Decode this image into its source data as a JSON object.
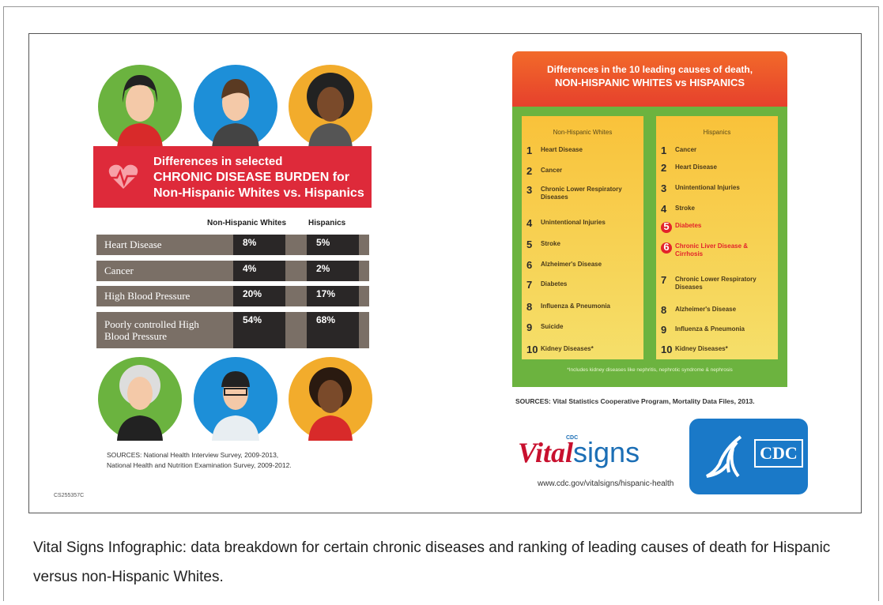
{
  "left": {
    "title": [
      "Differences in selected",
      "CHRONIC DISEASE BURDEN for",
      "Non-Hispanic Whites vs. Hispanics"
    ],
    "columns": [
      "Non-Hispanic Whites",
      "Hispanics"
    ],
    "rows": [
      {
        "label": "Heart Disease",
        "values": [
          "8%",
          "5%"
        ]
      },
      {
        "label": "Cancer",
        "values": [
          "4%",
          "2%"
        ]
      },
      {
        "label": "High Blood Pressure",
        "values": [
          "20%",
          "17%"
        ]
      },
      {
        "label": "Poorly controlled High Blood Pressure",
        "values": [
          "54%",
          "68%"
        ]
      }
    ],
    "sources": [
      "SOURCES: National Health Interview Survey, 2009-2013,",
      "National Health and Nutrition Examination Survey, 2009-2012."
    ],
    "code": "CS255357C"
  },
  "right": {
    "title": [
      "Differences in the 10 leading causes of death,",
      "NON-HISPANIC WHITES vs HISPANICS"
    ],
    "columns": [
      {
        "name": "Non-Hispanic Whites",
        "items": [
          {
            "rank": "1",
            "label": "Heart Disease"
          },
          {
            "rank": "2",
            "label": "Cancer"
          },
          {
            "rank": "3",
            "label": "Chronic Lower Respiratory Diseases"
          },
          {
            "rank": "4",
            "label": "Unintentional Injuries"
          },
          {
            "rank": "5",
            "label": "Stroke"
          },
          {
            "rank": "6",
            "label": "Alzheimer's Disease"
          },
          {
            "rank": "7",
            "label": "Diabetes"
          },
          {
            "rank": "8",
            "label": "Influenza & Pneumonia"
          },
          {
            "rank": "9",
            "label": "Suicide"
          },
          {
            "rank": "10",
            "label": "Kidney Diseases*"
          }
        ]
      },
      {
        "name": "Hispanics",
        "items": [
          {
            "rank": "1",
            "label": "Cancer"
          },
          {
            "rank": "2",
            "label": "Heart Disease"
          },
          {
            "rank": "3",
            "label": "Unintentional Injuries"
          },
          {
            "rank": "4",
            "label": "Stroke"
          },
          {
            "rank": "5",
            "label": "Diabetes",
            "color": "#e3232b"
          },
          {
            "rank": "6",
            "label": "Chronic Liver Disease & Cirrhosis",
            "color": "#e3232b"
          },
          {
            "rank": "7",
            "label": "Chronic Lower Respiratory Diseases"
          },
          {
            "rank": "8",
            "label": "Alzheimer's Disease"
          },
          {
            "rank": "9",
            "label": "Influenza & Pneumonia"
          },
          {
            "rank": "10",
            "label": "Kidney Diseases*"
          }
        ]
      }
    ],
    "footnote": "*Includes kidney diseases like nephritis, nephrotic syndrome & nephrosis",
    "sources": "SOURCES: Vital Statistics Cooperative Program, Mortality Data Files, 2013.",
    "logo": {
      "brand_a": "Vital",
      "brand_b": "signs",
      "brand_tag": "CDC",
      "url": "www.cdc.gov/vitalsigns/hispanic-health",
      "agency": "CDC"
    }
  },
  "caption": "Vital Signs Infographic: data breakdown for certain chronic diseases and ranking of leading causes of death for Hispanic versus non-Hispanic Whites."
}
